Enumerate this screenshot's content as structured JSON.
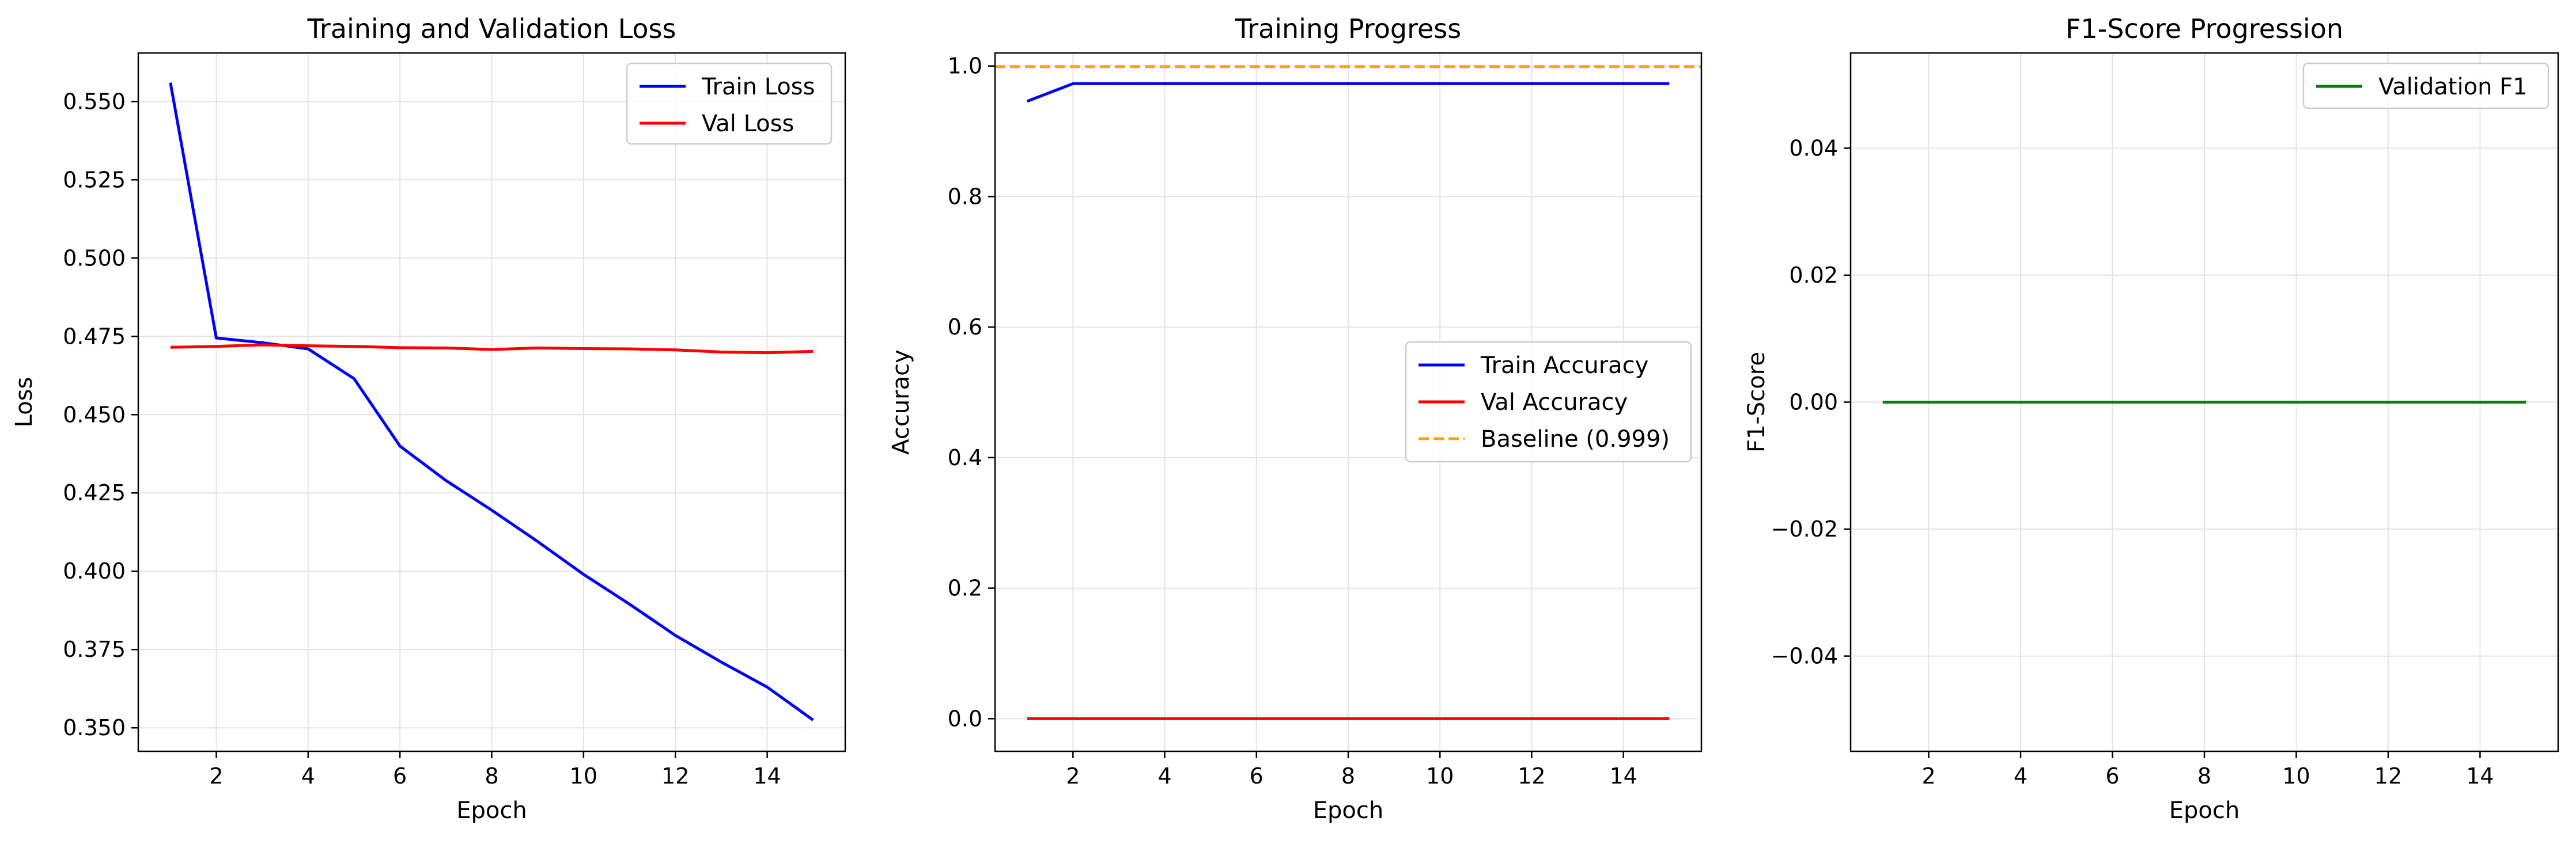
{
  "chart_data": [
    {
      "type": "line",
      "title": "Training and Validation Loss",
      "xlabel": "Epoch",
      "ylabel": "Loss",
      "xlim": [
        0.3,
        15.7
      ],
      "ylim": [
        0.3425,
        0.5655
      ],
      "xticks": [
        2,
        4,
        6,
        8,
        10,
        12,
        14
      ],
      "xtick_labels": [
        "2",
        "4",
        "6",
        "8",
        "10",
        "12",
        "14"
      ],
      "yticks": [
        0.35,
        0.375,
        0.4,
        0.425,
        0.45,
        0.475,
        0.5,
        0.525,
        0.55
      ],
      "ytick_labels": [
        "0.350",
        "0.375",
        "0.400",
        "0.425",
        "0.450",
        "0.475",
        "0.500",
        "0.525",
        "0.550"
      ],
      "grid": true,
      "legend": "upper-right",
      "x": [
        1,
        2,
        3,
        4,
        5,
        6,
        7,
        8,
        9,
        10,
        11,
        12,
        13,
        14,
        15
      ],
      "series": [
        {
          "name": "Train Loss",
          "color": "#0000ff",
          "dash": "solid",
          "values": [
            0.556,
            0.4745,
            0.473,
            0.471,
            0.4615,
            0.44,
            0.429,
            0.4195,
            0.4095,
            0.399,
            0.3895,
            0.3795,
            0.371,
            0.363,
            0.3525
          ]
        },
        {
          "name": "Val Loss",
          "color": "#ff0000",
          "dash": "solid",
          "values": [
            0.4715,
            0.4718,
            0.4723,
            0.472,
            0.4718,
            0.4714,
            0.4713,
            0.4708,
            0.4713,
            0.4711,
            0.471,
            0.4707,
            0.47,
            0.4698,
            0.4702
          ]
        }
      ]
    },
    {
      "type": "line",
      "title": "Training Progress",
      "xlabel": "Epoch",
      "ylabel": "Accuracy",
      "xlim": [
        0.3,
        15.7
      ],
      "ylim": [
        -0.05,
        1.02
      ],
      "xticks": [
        2,
        4,
        6,
        8,
        10,
        12,
        14
      ],
      "xtick_labels": [
        "2",
        "4",
        "6",
        "8",
        "10",
        "12",
        "14"
      ],
      "yticks": [
        0.0,
        0.2,
        0.4,
        0.6,
        0.8,
        1.0
      ],
      "ytick_labels": [
        "0.0",
        "0.2",
        "0.4",
        "0.6",
        "0.8",
        "1.0"
      ],
      "grid": true,
      "legend": "center-right",
      "x": [
        1,
        2,
        3,
        4,
        5,
        6,
        7,
        8,
        9,
        10,
        11,
        12,
        13,
        14,
        15
      ],
      "series": [
        {
          "name": "Train Accuracy",
          "color": "#0000ff",
          "dash": "solid",
          "values": [
            0.946,
            0.973,
            0.973,
            0.973,
            0.973,
            0.973,
            0.973,
            0.973,
            0.973,
            0.973,
            0.973,
            0.973,
            0.973,
            0.973,
            0.973
          ]
        },
        {
          "name": "Val Accuracy",
          "color": "#ff0000",
          "dash": "solid",
          "values": [
            0.0,
            0.0,
            0.0,
            0.0,
            0.0,
            0.0,
            0.0,
            0.0,
            0.0,
            0.0,
            0.0,
            0.0,
            0.0,
            0.0,
            0.0
          ]
        },
        {
          "name": "Baseline (0.999)",
          "color": "#ffa500",
          "dash": "dashed",
          "hline": 0.999
        }
      ]
    },
    {
      "type": "line",
      "title": "F1-Score Progression",
      "xlabel": "Epoch",
      "ylabel": "F1-Score",
      "xlim": [
        0.3,
        15.7
      ],
      "ylim": [
        -0.055,
        0.055
      ],
      "xticks": [
        2,
        4,
        6,
        8,
        10,
        12,
        14
      ],
      "xtick_labels": [
        "2",
        "4",
        "6",
        "8",
        "10",
        "12",
        "14"
      ],
      "yticks": [
        -0.04,
        -0.02,
        0.0,
        0.02,
        0.04
      ],
      "ytick_labels": [
        "−0.04",
        "−0.02",
        "0.00",
        "0.02",
        "0.04"
      ],
      "grid": true,
      "legend": "upper-right",
      "x": [
        1,
        2,
        3,
        4,
        5,
        6,
        7,
        8,
        9,
        10,
        11,
        12,
        13,
        14,
        15
      ],
      "series": [
        {
          "name": "Validation F1",
          "color": "#008000",
          "dash": "solid",
          "values": [
            0.0,
            0.0,
            0.0,
            0.0,
            0.0,
            0.0,
            0.0,
            0.0,
            0.0,
            0.0,
            0.0,
            0.0,
            0.0,
            0.0,
            0.0
          ]
        }
      ]
    }
  ]
}
